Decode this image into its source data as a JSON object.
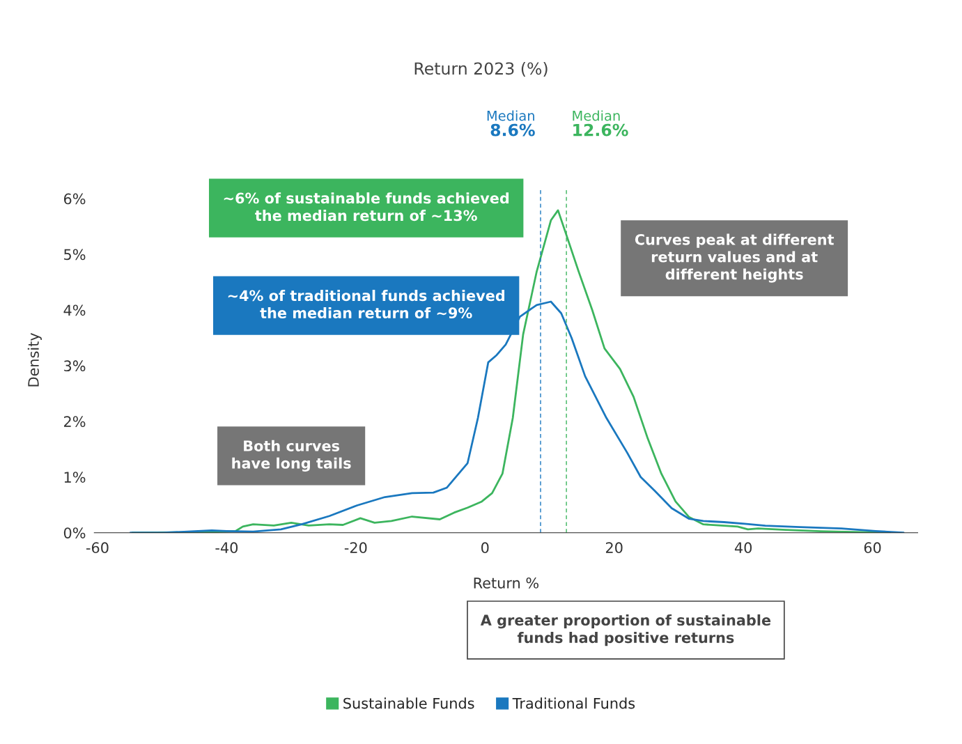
{
  "chart_data": {
    "type": "line",
    "title": "Return 2023 (%)",
    "xlabel": "Return %",
    "ylabel": "Density",
    "xlim": [
      -60.5,
      67
    ],
    "xticks": [
      -60,
      -40,
      -20,
      0,
      20,
      40,
      60
    ],
    "ylim": [
      0,
      6.2
    ],
    "yticks": [
      {
        "value": 0,
        "label": "0%"
      },
      {
        "value": 1,
        "label": "1%"
      },
      {
        "value": 2,
        "label": "2%"
      },
      {
        "value": 3,
        "label": "3%"
      },
      {
        "value": 4,
        "label": "4%"
      },
      {
        "value": 5,
        "label": "5%"
      },
      {
        "value": 6,
        "label": "6%"
      }
    ],
    "series": [
      {
        "name": "Sustainable Funds",
        "color": "#3cb55e",
        "x": [
          -54.6,
          -42.3,
          -38.6,
          -37.5,
          -35.9,
          -32.7,
          -30,
          -27.3,
          -24.1,
          -22,
          -19.3,
          -17.1,
          -14.5,
          -11.3,
          -7.0,
          -4.8,
          -2.7,
          -0.5,
          1.1,
          2.7,
          4.3,
          5.9,
          8.0,
          10.2,
          11.3,
          12.5,
          14.5,
          16.6,
          18.5,
          20.9,
          23,
          25.2,
          27.3,
          29.5,
          31.6,
          33.8,
          37,
          39.1,
          40.7,
          42.3,
          46.6,
          52,
          62.7
        ],
        "values": [
          0,
          0.01,
          0.03,
          0.11,
          0.15,
          0.13,
          0.18,
          0.13,
          0.15,
          0.14,
          0.26,
          0.18,
          0.21,
          0.29,
          0.24,
          0.36,
          0.45,
          0.56,
          0.71,
          1.06,
          2.06,
          3.56,
          4.69,
          5.61,
          5.79,
          5.38,
          4.69,
          4.0,
          3.31,
          2.94,
          2.44,
          1.69,
          1.06,
          0.56,
          0.28,
          0.15,
          0.125,
          0.11,
          0.06,
          0.075,
          0.05,
          0.025,
          0
        ]
      },
      {
        "name": "Traditional Funds",
        "color": "#1a78bf",
        "x": [
          -54.9,
          -49.8,
          -42.3,
          -40,
          -35.9,
          -31.6,
          -28.4,
          -24.1,
          -19.8,
          -15.5,
          -11.3,
          -8.0,
          -5.9,
          -2.7,
          -1.1,
          0.5,
          1.8,
          3.2,
          5.4,
          8.0,
          10.2,
          11.8,
          13.4,
          15.5,
          18.8,
          22,
          24.1,
          26.3,
          28.9,
          31.6,
          33.8,
          37,
          40.2,
          43.4,
          48.8,
          55.2,
          60.5,
          64.8
        ],
        "values": [
          0,
          0,
          0.04,
          0.03,
          0.02,
          0.06,
          0.15,
          0.3,
          0.49,
          0.64,
          0.71,
          0.72,
          0.81,
          1.25,
          2.06,
          3.06,
          3.19,
          3.38,
          3.88,
          4.09,
          4.15,
          3.94,
          3.5,
          2.81,
          2.06,
          1.44,
          1.0,
          0.75,
          0.44,
          0.25,
          0.21,
          0.19,
          0.16,
          0.125,
          0.1,
          0.075,
          0.03,
          0
        ]
      }
    ],
    "ref_lines": [
      {
        "axis": "x",
        "value": 8.6,
        "label": "Median\n8.6%",
        "color": "#1a78bf",
        "line_style": "dashed"
      },
      {
        "axis": "x",
        "value": 12.6,
        "label": "Median\n12.6%",
        "color": "#3cb55e",
        "line_style": "dashed"
      }
    ],
    "annotations": [
      "~6% of sustainable funds achieved\nthe median return of ~13%",
      "~4% of traditional funds achieved\nthe median return of ~9%",
      "Curves peak at different\nreturn values and at\ndifferent heights",
      "Both curves\nhave long tails",
      "A greater proportion of sustainable\nfunds had positive returns"
    ],
    "legend": "bottom",
    "grid": false
  }
}
